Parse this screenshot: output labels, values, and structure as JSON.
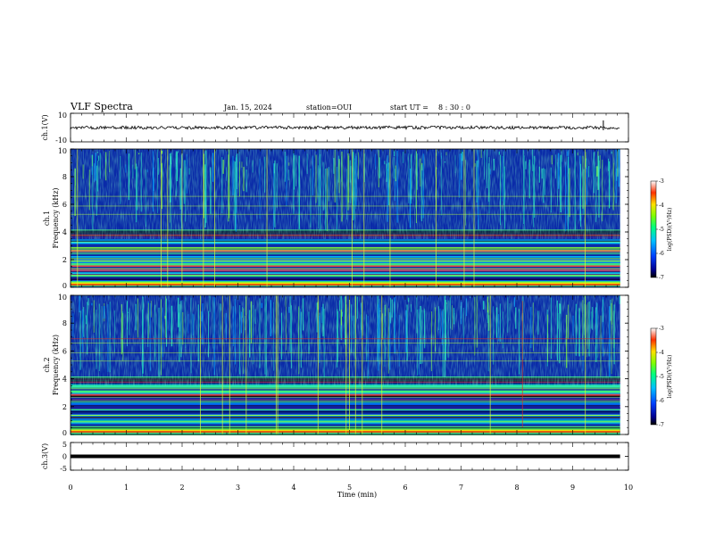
{
  "header": {
    "title": "VLF Spectra",
    "date": "Jan. 15, 2024",
    "station": "station=OUI",
    "start_label": "start  UT =",
    "start_time": "8 : 30 : 0"
  },
  "chart_data": [
    {
      "type": "line",
      "panel": "ch1-waveform",
      "ylabel": "ch.1(V)",
      "ylim": [
        -10,
        10
      ],
      "y_ticks": [
        "10",
        "-10"
      ],
      "xlim": [
        0,
        10
      ],
      "trace_level": 0,
      "trace_end": 9.85
    },
    {
      "type": "heatmap",
      "panel": "ch1-spectrogram",
      "ylabel": "ch.1\nFrequency (kHz)",
      "ylabel_lines": [
        "ch.1",
        "Frequency (kHz)"
      ],
      "ylim": [
        0,
        10
      ],
      "y_ticks": [
        "0",
        "2",
        "4",
        "6",
        "8",
        "10"
      ],
      "xlim": [
        0,
        10
      ],
      "data_end": 9.85,
      "colorbar": {
        "label": "log(PSD)(V²/Hz)",
        "range": [
          -7,
          -3
        ],
        "ticks": [
          "-3",
          "-4",
          "-5",
          "-6",
          "-7"
        ]
      }
    },
    {
      "type": "heatmap",
      "panel": "ch2-spectrogram",
      "ylabel": "ch.2\nFrequency (kHz)",
      "ylabel_lines": [
        "ch.2",
        "Frequency (kHz)"
      ],
      "ylim": [
        0,
        10
      ],
      "y_ticks": [
        "0",
        "2",
        "4",
        "6",
        "8",
        "10"
      ],
      "xlim": [
        0,
        10
      ],
      "data_end": 9.85,
      "colorbar": {
        "label": "log(PSD)(V²/Hz)",
        "range": [
          -7,
          -3
        ],
        "ticks": [
          "-3",
          "-4",
          "-5",
          "-6",
          "-7"
        ]
      }
    },
    {
      "type": "line",
      "panel": "ch3-waveform",
      "ylabel": "ch.3(V)",
      "ylim": [
        -5,
        5
      ],
      "y_ticks": [
        "5",
        "0",
        "-5"
      ],
      "xlim": [
        0,
        10
      ],
      "trace_level": 0,
      "trace_end": 9.85
    }
  ],
  "x_axis": {
    "label": "Time (min)",
    "ticks": [
      "0",
      "1",
      "2",
      "3",
      "4",
      "5",
      "6",
      "7",
      "8",
      "9",
      "10"
    ]
  }
}
